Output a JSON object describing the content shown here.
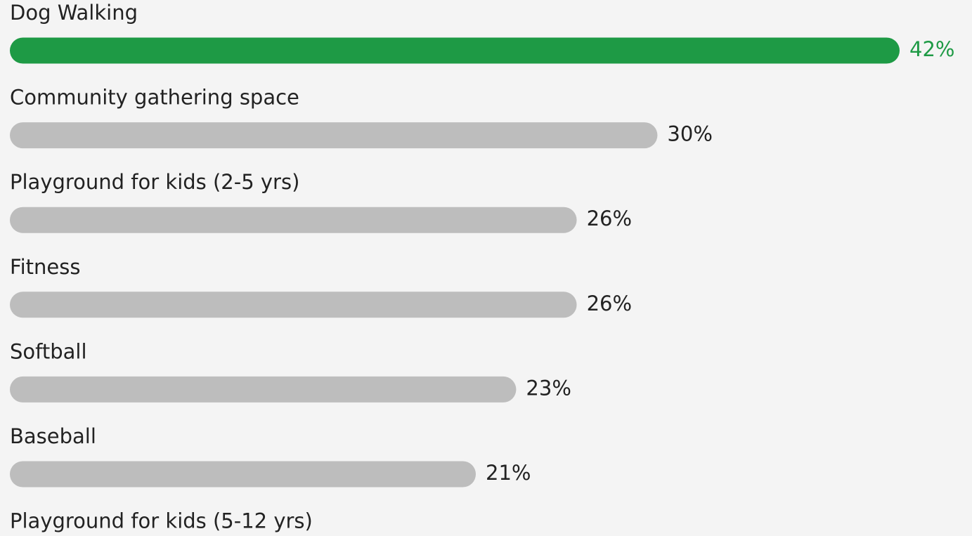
{
  "chart_data": {
    "type": "bar",
    "categories": [
      "Dog Walking",
      "Community gathering space",
      "Playground for kids (2-5 yrs)",
      "Fitness",
      "Softball",
      "Baseball",
      "Playground for kids (5-12 yrs)"
    ],
    "values": [
      42,
      30,
      26,
      26,
      23,
      21,
      null
    ],
    "value_labels": [
      "42%",
      "30%",
      "26%",
      "26%",
      "23%",
      "21%",
      null
    ],
    "colors": [
      "#1e9a45",
      "#bdbdbd",
      "#bdbdbd",
      "#bdbdbd",
      "#bdbdbd",
      "#bdbdbd",
      "#bdbdbd"
    ],
    "label_colors": [
      "#1e9a45",
      "#222222",
      "#222222",
      "#222222",
      "#222222",
      "#222222",
      "#222222"
    ]
  }
}
